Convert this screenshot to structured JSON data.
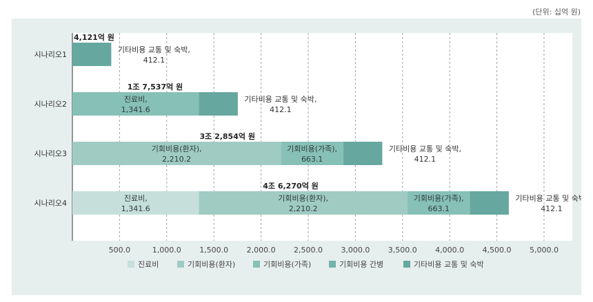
{
  "unit_note": "(단위: 십억 원)",
  "colors": {
    "panel_bg": "#e7eeee",
    "plot_bg": "#ffffff",
    "grid": "#9aa3a3",
    "axis": "#333333"
  },
  "chart_data": {
    "type": "bar",
    "orientation": "horizontal",
    "stacked": true,
    "categories": [
      "시나리오1",
      "시나리오2",
      "시나리오3",
      "시나리오4"
    ],
    "x_ticks": [
      "500.0",
      "1,000.0",
      "1,500.0",
      "2,000.0",
      "2,500.0",
      "3,000.0",
      "3,500.0",
      "4,000.0",
      "4,500.0",
      "5,000.0"
    ],
    "xlim": [
      0,
      5300
    ],
    "grid": true,
    "legend_position": "bottom",
    "legend": [
      {
        "name": "진료비",
        "color": "#c6dfdb"
      },
      {
        "name": "기회비용(환자)",
        "color": "#9fcbc3"
      },
      {
        "name": "기회비용(가족)",
        "color": "#87c0b6"
      },
      {
        "name": "기회비용 간병",
        "color": "#74b3a9"
      },
      {
        "name": "기타비용 교통 및 숙박",
        "color": "#66a8a0"
      }
    ],
    "bars": [
      {
        "total": 412.1,
        "total_label": "4,121억 원",
        "segments": [
          {
            "series": "기타비용 교통 및 숙박",
            "value": 412.1,
            "color": "#66a8a0",
            "label": [
              "기타비용 교통 및 숙박,",
              "412.1"
            ],
            "label_position": "outside"
          }
        ]
      },
      {
        "total": 1753.7,
        "total_label": "1조 7,537억 원",
        "segments": [
          {
            "series": "진료비",
            "value": 1341.6,
            "color": "#87c0b6",
            "label": [
              "진료비,",
              "1,341.6"
            ],
            "label_position": "inside"
          },
          {
            "series": "기타비용 교통 및 숙박",
            "value": 412.1,
            "color": "#66a8a0",
            "label": [
              "기타비용 교통 및 숙박,",
              "412.1"
            ],
            "label_position": "outside"
          }
        ]
      },
      {
        "total": 3285.4,
        "total_label": "3조 2,854억 원",
        "segments": [
          {
            "series": "기회비용(환자)",
            "value": 2210.2,
            "color": "#9fcbc3",
            "label": [
              "기회비용(환자),",
              "2,210.2"
            ],
            "label_position": "inside"
          },
          {
            "series": "기회비용(가족)",
            "value": 663.1,
            "color": "#87c0b6",
            "label": [
              "기회비용(가족),",
              "663.1"
            ],
            "label_position": "inside"
          },
          {
            "series": "기타비용 교통 및 숙박",
            "value": 412.1,
            "color": "#66a8a0",
            "label": [
              "기타비용 교통 및 숙박,",
              "412.1"
            ],
            "label_position": "outside"
          }
        ]
      },
      {
        "total": 4627.0,
        "total_label": "4조 6,270억 원",
        "segments": [
          {
            "series": "진료비",
            "value": 1341.6,
            "color": "#c6dfdb",
            "label": [
              "진료비,",
              "1,341.6"
            ],
            "label_position": "inside"
          },
          {
            "series": "기회비용(환자)",
            "value": 2210.2,
            "color": "#9fcbc3",
            "label": [
              "기회비용(환자),",
              "2,210.2"
            ],
            "label_position": "inside"
          },
          {
            "series": "기회비용(가족)",
            "value": 663.1,
            "color": "#87c0b6",
            "label": [
              "기회비용(가족),",
              "663.1"
            ],
            "label_position": "inside"
          },
          {
            "series": "기타비용 교통 및 숙박",
            "value": 412.1,
            "color": "#66a8a0",
            "label": [
              "기타비용 교통 및 숙박,",
              "412.1"
            ],
            "label_position": "outside"
          }
        ]
      }
    ]
  }
}
